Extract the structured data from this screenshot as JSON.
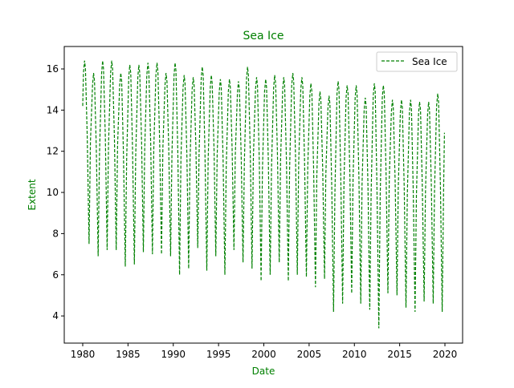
{
  "chart_data": {
    "type": "line",
    "title": "Sea Ice",
    "xlabel": "Date",
    "ylabel": "Extent",
    "xlim": [
      1977.96,
      2021.95
    ],
    "ylim": [
      2.68,
      17.09
    ],
    "xticks": [
      1980,
      1985,
      1990,
      1995,
      2000,
      2005,
      2010,
      2015,
      2020
    ],
    "yticks": [
      4,
      6,
      8,
      10,
      12,
      14,
      16
    ],
    "grid": false,
    "legend": "top-right",
    "colors": {
      "series": "#008000",
      "title": "#008000",
      "labels": "#008000"
    },
    "line_style": "dashed",
    "series": [
      {
        "name": "Sea Ice",
        "start": [
          1980.0,
          14.2
        ],
        "end": [
          2019.95,
          12.9
        ],
        "annual_max": [
          16.4,
          15.8,
          16.4,
          16.4,
          15.8,
          16.2,
          16.2,
          16.3,
          16.3,
          15.8,
          16.3,
          15.7,
          15.6,
          16.1,
          15.7,
          15.5,
          15.5,
          15.4,
          16.1,
          15.6,
          15.5,
          15.7,
          15.6,
          15.8,
          15.6,
          15.3,
          14.9,
          14.7,
          15.4,
          15.2,
          15.2,
          14.6,
          15.3,
          15.2,
          14.5,
          14.5,
          14.5,
          14.4,
          14.4,
          14.8
        ],
        "annual_min": [
          7.5,
          6.9,
          7.2,
          7.2,
          6.4,
          6.5,
          7.1,
          7.0,
          7.0,
          6.9,
          6.0,
          6.3,
          7.3,
          6.2,
          6.9,
          6.0,
          7.2,
          6.6,
          6.3,
          5.7,
          6.0,
          6.6,
          5.7,
          6.0,
          5.9,
          5.4,
          5.8,
          4.2,
          4.6,
          5.1,
          4.6,
          4.3,
          3.4,
          5.1,
          5.0,
          4.4,
          4.2,
          4.7,
          4.6,
          4.2
        ],
        "first_year": 1980
      }
    ]
  }
}
